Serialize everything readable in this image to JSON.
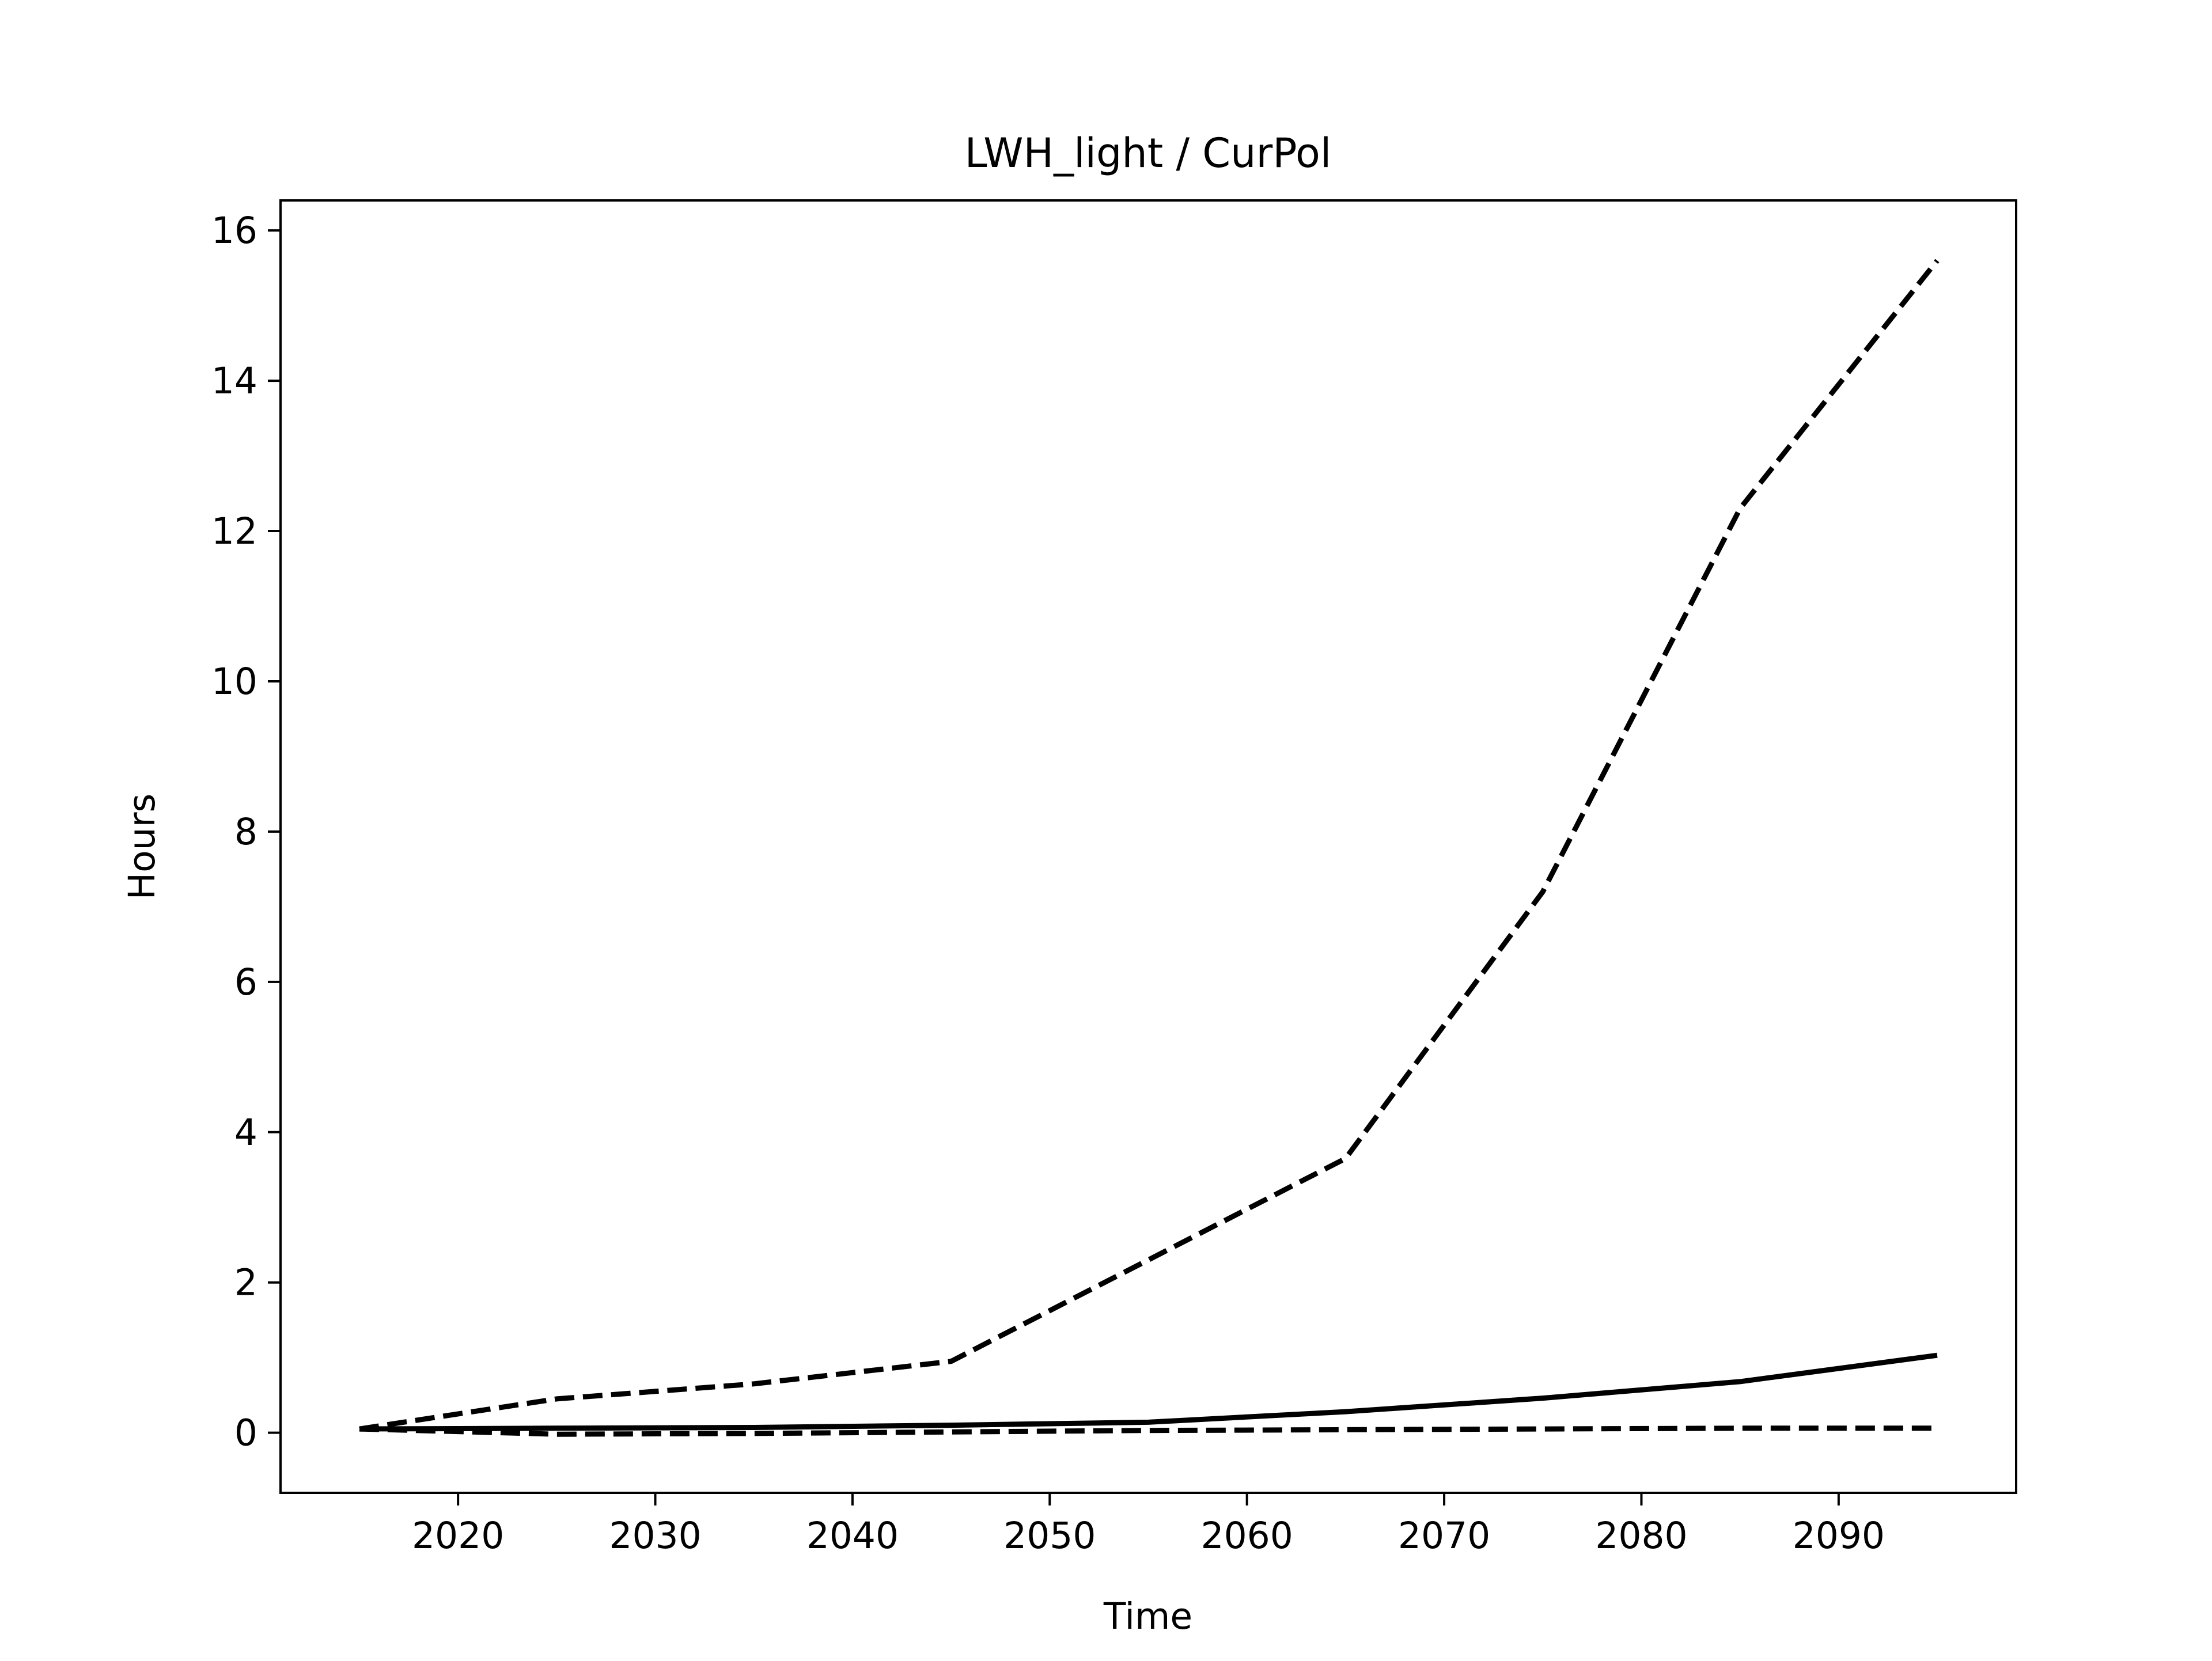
{
  "chart_data": {
    "type": "line",
    "title": "LWH_light / CurPol",
    "xlabel": "Time",
    "ylabel": "Hours",
    "xlim": [
      2011,
      2099
    ],
    "ylim": [
      -0.8,
      16.4
    ],
    "xticks": [
      2020,
      2030,
      2040,
      2050,
      2060,
      2070,
      2080,
      2090
    ],
    "yticks": [
      0,
      2,
      4,
      6,
      8,
      10,
      12,
      14,
      16
    ],
    "grid": false,
    "legend": "none",
    "line_color": "#000000",
    "x": [
      2015,
      2025,
      2035,
      2045,
      2055,
      2065,
      2075,
      2085,
      2095
    ],
    "series": [
      {
        "style": "dashed",
        "values": [
          0.05,
          0.45,
          0.65,
          0.95,
          2.3,
          3.65,
          7.2,
          12.3,
          15.6
        ]
      },
      {
        "style": "solid",
        "values": [
          0.05,
          0.06,
          0.07,
          0.1,
          0.14,
          0.28,
          0.46,
          0.68,
          1.03
        ]
      },
      {
        "style": "dashed",
        "values": [
          0.05,
          -0.02,
          -0.01,
          0.01,
          0.03,
          0.04,
          0.05,
          0.06,
          0.06
        ]
      }
    ]
  }
}
